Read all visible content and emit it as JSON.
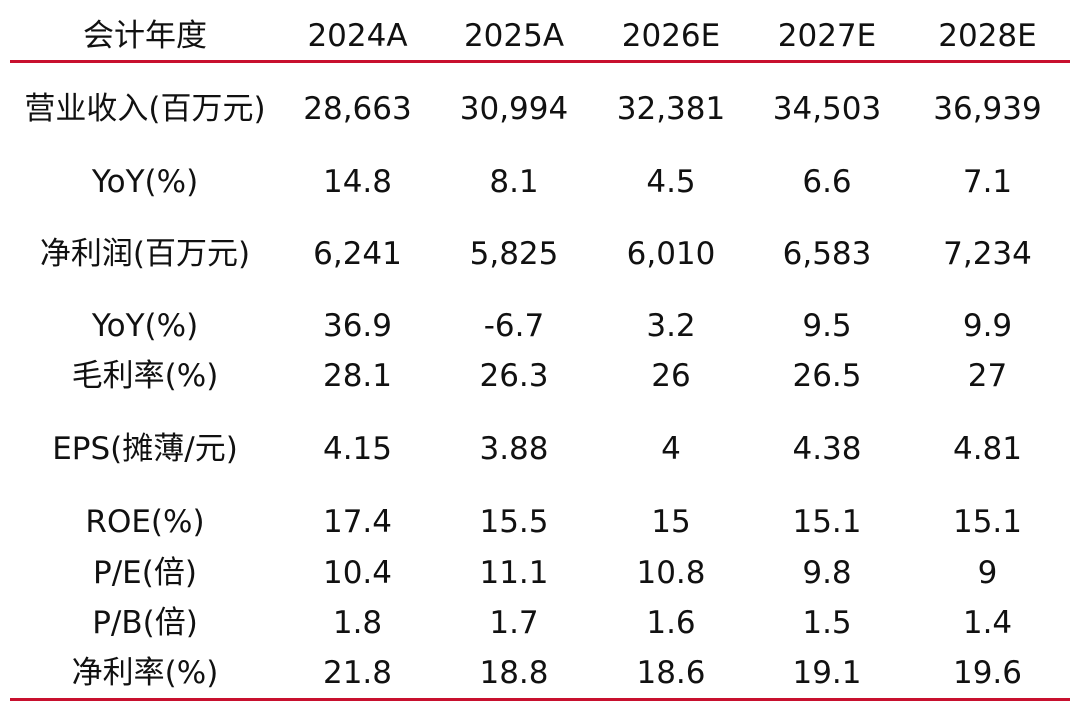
{
  "colors": {
    "rule": "#c8102e",
    "text": "#111111",
    "background": "#ffffff"
  },
  "header": [
    "会计年度",
    "2024A",
    "2025A",
    "2026E",
    "2027E",
    "2028E"
  ],
  "rows": [
    {
      "label": "营业收入(百万元)",
      "values": [
        "28,663",
        "30,994",
        "32,381",
        "34,503",
        "36,939"
      ]
    },
    {
      "label": "YoY(%)",
      "values": [
        "14.8",
        "8.1",
        "4.5",
        "6.6",
        "7.1"
      ]
    },
    {
      "label": "净利润(百万元)",
      "values": [
        "6,241",
        "5,825",
        "6,010",
        "6,583",
        "7,234"
      ]
    },
    {
      "label": "YoY(%)",
      "values": [
        "36.9",
        "-6.7",
        "3.2",
        "9.5",
        "9.9"
      ]
    },
    {
      "label": "毛利率(%)",
      "values": [
        "28.1",
        "26.3",
        "26",
        "26.5",
        "27"
      ]
    },
    {
      "label": "EPS(摊薄/元)",
      "values": [
        "4.15",
        "3.88",
        "4",
        "4.38",
        "4.81"
      ]
    },
    {
      "label": "ROE(%)",
      "values": [
        "17.4",
        "15.5",
        "15",
        "15.1",
        "15.1"
      ]
    },
    {
      "label": "P/E(倍)",
      "values": [
        "10.4",
        "11.1",
        "10.8",
        "9.8",
        "9"
      ]
    },
    {
      "label": "P/B(倍)",
      "values": [
        "1.8",
        "1.7",
        "1.6",
        "1.5",
        "1.4"
      ]
    },
    {
      "label": "净利率(%)",
      "values": [
        "21.8",
        "18.8",
        "18.6",
        "19.1",
        "19.6"
      ]
    }
  ]
}
